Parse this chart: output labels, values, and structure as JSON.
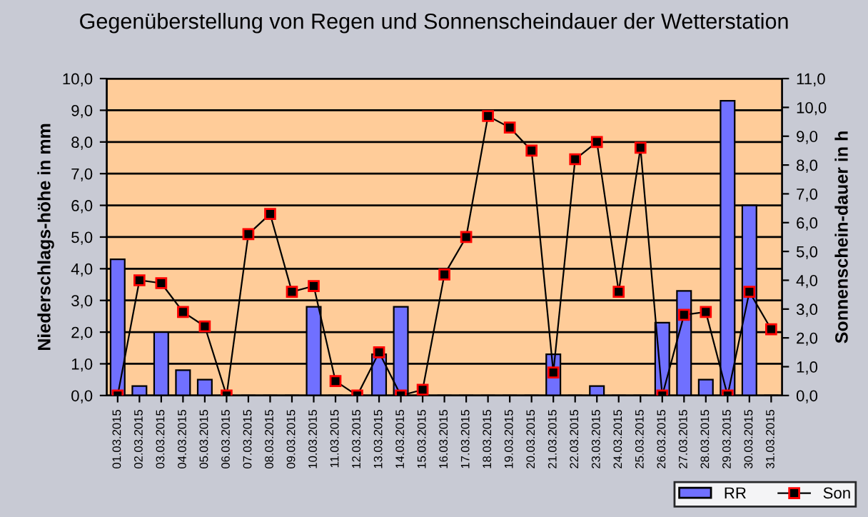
{
  "chart_data": {
    "type": "bar",
    "title": "Gegenüberstellung von Regen und Sonnenscheindauer der Wetterstation",
    "xlabel": null,
    "ylabel": "Niederschlags-höhe in mm",
    "y2label": "Sonnenschein-dauer in h",
    "categories": [
      "01.03.2015",
      "02.03.2015",
      "03.03.2015",
      "04.03.2015",
      "05.03.2015",
      "06.03.2015",
      "07.03.2015",
      "08.03.2015",
      "09.03.2015",
      "10.03.2015",
      "11.03.2015",
      "12.03.2015",
      "13.03.2015",
      "14.03.2015",
      "15.03.2015",
      "16.03.2015",
      "17.03.2015",
      "18.03.2015",
      "19.03.2015",
      "20.03.2015",
      "21.03.2015",
      "22.03.2015",
      "23.03.2015",
      "24.03.2015",
      "25.03.2015",
      "26.03.2015",
      "27.03.2015",
      "28.03.2015",
      "29.03.2015",
      "30.03.2015",
      "31.03.2015"
    ],
    "series": [
      {
        "name": "RR",
        "color": "#7070ff",
        "values": [
          4.3,
          0.3,
          2.0,
          0.8,
          0.5,
          0,
          0,
          0,
          0,
          2.8,
          0,
          0,
          1.3,
          2.8,
          0,
          0,
          0,
          0,
          0,
          0,
          1.3,
          0,
          0.3,
          0,
          0,
          2.3,
          3.3,
          0.5,
          9.3,
          6.0,
          0
        ]
      },
      {
        "name": "Son",
        "type": "line",
        "axis": "y2",
        "color": "#000000",
        "marker": "square",
        "values": [
          0,
          4.0,
          3.9,
          2.9,
          2.4,
          0,
          5.6,
          6.3,
          3.6,
          3.8,
          0.5,
          0,
          1.5,
          0,
          0.2,
          4.2,
          5.5,
          9.7,
          9.3,
          8.5,
          0.8,
          8.2,
          8.8,
          3.6,
          8.6,
          0,
          2.8,
          2.9,
          0,
          3.6,
          2.3
        ]
      }
    ],
    "ylim": [
      0,
      10
    ],
    "yticks": [
      {
        "value": 0,
        "label": "0,0"
      },
      {
        "value": 1,
        "label": "1,0"
      },
      {
        "value": 2,
        "label": "2,0"
      },
      {
        "value": 3,
        "label": "3,0"
      },
      {
        "value": 4,
        "label": "4,0"
      },
      {
        "value": 5,
        "label": "5,0"
      },
      {
        "value": 6,
        "label": "6,0"
      },
      {
        "value": 7,
        "label": "7,0"
      },
      {
        "value": 8,
        "label": "8,0"
      },
      {
        "value": 9,
        "label": "9,0"
      },
      {
        "value": 10,
        "label": "10,0"
      }
    ],
    "y2lim": [
      0,
      11
    ],
    "y2ticks": [
      {
        "value": 0,
        "label": "0,0"
      },
      {
        "value": 1,
        "label": "1,0"
      },
      {
        "value": 2,
        "label": "2,0"
      },
      {
        "value": 3,
        "label": "3,0"
      },
      {
        "value": 4,
        "label": "4,0"
      },
      {
        "value": 5,
        "label": "5,0"
      },
      {
        "value": 6,
        "label": "6,0"
      },
      {
        "value": 7,
        "label": "7,0"
      },
      {
        "value": 8,
        "label": "8,0"
      },
      {
        "value": 9,
        "label": "9,0"
      },
      {
        "value": 10,
        "label": "10,0"
      },
      {
        "value": 11,
        "label": "11,0"
      }
    ],
    "grid": "y",
    "legend": "bottom right"
  }
}
